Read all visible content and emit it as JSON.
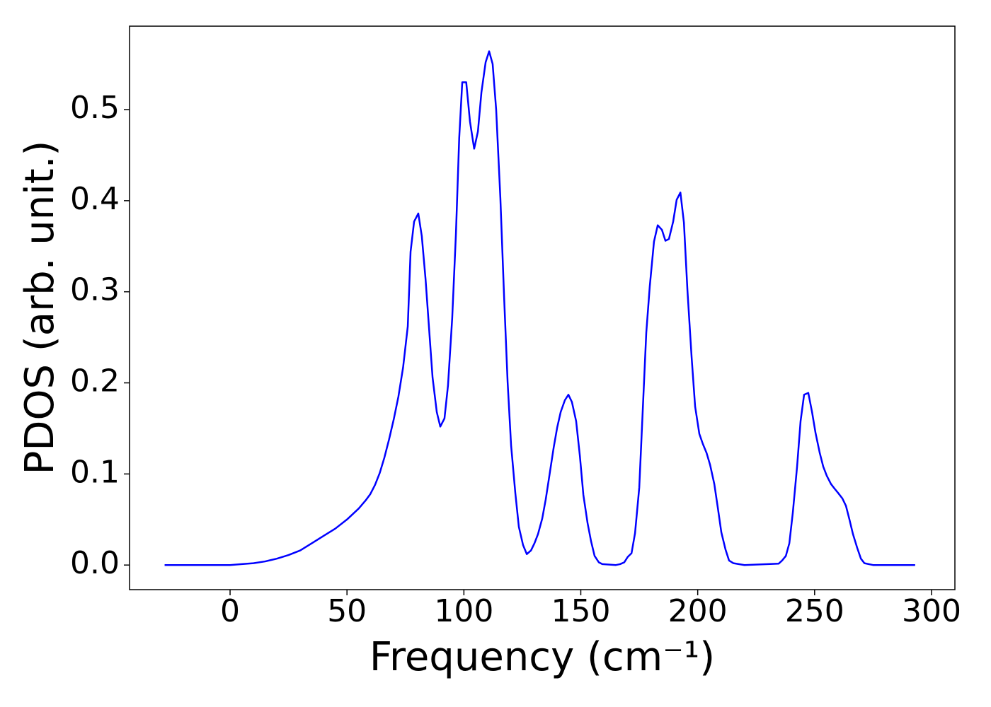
{
  "chart_data": {
    "type": "line",
    "xlabel": "Frequency (cm⁻¹)",
    "ylabel": "PDOS (arb. unit.)",
    "x": [
      -28,
      0,
      5,
      10,
      15,
      20,
      25,
      30,
      35,
      40,
      45,
      50,
      55,
      58,
      60,
      62,
      64,
      66,
      68,
      70,
      72,
      74,
      76,
      77.2,
      78.7,
      80.5,
      82,
      83.6,
      86.6,
      88.4,
      89.9,
      91.7,
      93.2,
      95,
      96.6,
      98,
      99.3,
      101,
      102.6,
      104.4,
      106,
      107.5,
      109.3,
      110.8,
      112.3,
      113.8,
      115.6,
      117.2,
      118.7,
      120.2,
      122,
      123.5,
      125.3,
      126.9,
      128.7,
      130.2,
      131.7,
      133.5,
      135,
      136.5,
      138.4,
      139.9,
      141.4,
      143.2,
      144.7,
      146.2,
      148,
      149.6,
      151.1,
      152.9,
      154.4,
      155.9,
      157.7,
      159.2,
      165,
      166.8,
      168.6,
      170.1,
      171.7,
      173.2,
      175,
      176.5,
      178,
      179.5,
      181.3,
      182.9,
      184.7,
      186.2,
      187.7,
      189.5,
      191,
      192.6,
      194.1,
      195.6,
      197.4,
      198.9,
      200.7,
      202.2,
      203.8,
      205.3,
      207.1,
      208.6,
      210.1,
      211.9,
      213.4,
      215.3,
      220,
      234.6,
      236.1,
      237.7,
      239.2,
      240.7,
      242.5,
      244,
      245.5,
      247.3,
      248.9,
      250.4,
      252.2,
      253.7,
      255.2,
      257,
      258.5,
      260.1,
      261.9,
      263.4,
      264.9,
      266.4,
      268.2,
      269.8,
      271.3,
      275,
      293
    ],
    "series": [
      {
        "color": "#0000ff",
        "values": [
          0,
          0,
          0.001,
          0.002,
          0.004,
          0.007,
          0.011,
          0.016,
          0.024,
          0.032,
          0.04,
          0.05,
          0.062,
          0.071,
          0.078,
          0.088,
          0.101,
          0.118,
          0.138,
          0.16,
          0.185,
          0.217,
          0.262,
          0.344,
          0.377,
          0.386,
          0.361,
          0.314,
          0.206,
          0.168,
          0.152,
          0.161,
          0.197,
          0.271,
          0.364,
          0.469,
          0.53,
          0.53,
          0.487,
          0.457,
          0.476,
          0.519,
          0.552,
          0.564,
          0.55,
          0.5,
          0.403,
          0.294,
          0.201,
          0.131,
          0.079,
          0.042,
          0.022,
          0.012,
          0.016,
          0.024,
          0.034,
          0.051,
          0.072,
          0.097,
          0.129,
          0.151,
          0.168,
          0.181,
          0.187,
          0.179,
          0.158,
          0.12,
          0.077,
          0.046,
          0.026,
          0.01,
          0.003,
          0.001,
          0,
          0.001,
          0.003,
          0.009,
          0.013,
          0.035,
          0.085,
          0.17,
          0.255,
          0.306,
          0.355,
          0.373,
          0.368,
          0.356,
          0.358,
          0.377,
          0.401,
          0.409,
          0.376,
          0.302,
          0.228,
          0.174,
          0.144,
          0.133,
          0.123,
          0.11,
          0.089,
          0.063,
          0.036,
          0.017,
          0.005,
          0.002,
          0,
          0.0015,
          0.005,
          0.01,
          0.024,
          0.058,
          0.108,
          0.158,
          0.187,
          0.189,
          0.168,
          0.145,
          0.123,
          0.108,
          0.098,
          0.089,
          0.084,
          0.079,
          0.073,
          0.065,
          0.05,
          0.034,
          0.019,
          0.007,
          0.002,
          0,
          0
        ]
      }
    ],
    "xlim": [
      -43,
      310
    ],
    "ylim": [
      -0.027,
      0.5916
    ],
    "xticks": [
      0,
      50,
      100,
      150,
      200,
      250,
      300
    ],
    "yticks": [
      {
        "value": 0,
        "label": "0.0"
      },
      0.1,
      0.2,
      0.3,
      0.4,
      0.5
    ]
  }
}
